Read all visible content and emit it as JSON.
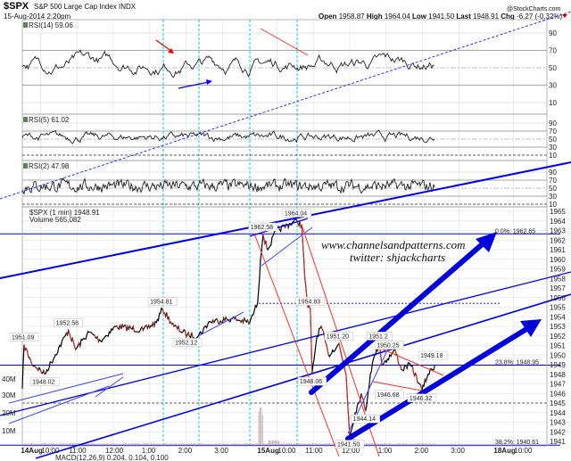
{
  "header": {
    "symbol": "$SPX",
    "name": "S&P 500 Large Cap Index INDX",
    "source": "@StockCharts.com",
    "datetime": "15-Aug-2014 2:20pm",
    "open_label": "Open",
    "open": "1958.87",
    "high_label": "High",
    "high": "1964.04",
    "low_label": "Low",
    "low": "1941.50",
    "last_label": "Last",
    "last": "1948.91",
    "chg_label": "Chg",
    "chg": "-6.27 (-0.32%)",
    "chg_icon": "triangle-down-icon",
    "chg_color": "#cc0000"
  },
  "watermark": {
    "line1": "www.channelsandpatterns.com",
    "line2": "twitter: shjackcharts"
  },
  "chart_data": [
    {
      "type": "line",
      "title": "RSI(14) 59.06",
      "ylim": [
        0,
        100
      ],
      "ticks": [
        "90",
        "70",
        "50",
        "30",
        "10"
      ]
    },
    {
      "type": "line",
      "title": "RSI(5) 61.02",
      "ylim": [
        0,
        100
      ],
      "ticks": [
        "90",
        "70",
        "50",
        "30",
        "10"
      ]
    },
    {
      "type": "line",
      "title": "RSI(2) 47.98",
      "ylim": [
        0,
        100
      ],
      "ticks": [
        "90",
        "70",
        "50",
        "30",
        "10"
      ]
    },
    {
      "type": "line",
      "title": "$SPX (1 min) 1948.91",
      "volume_label": "Volume 565,082",
      "ylim": [
        1941,
        1965
      ],
      "price_ticks": [
        "1965",
        "1964",
        "1963",
        "1962",
        "1961",
        "1960",
        "1959",
        "1958",
        "1957",
        "1956",
        "1955",
        "1954",
        "1953",
        "1952",
        "1951",
        "1950",
        "1949",
        "1948",
        "1947",
        "1946",
        "1945",
        "1944",
        "1943",
        "1942",
        "1941"
      ],
      "volume_ticks": [
        "40M",
        "30M",
        "20M",
        "10M"
      ],
      "x_ticks": [
        {
          "t": "14Aug 10:00",
          "label": "10:00",
          "day": "14Aug"
        },
        {
          "t": "14Aug 11:00",
          "label": "11:00"
        },
        {
          "t": "14Aug 12:00",
          "label": "12:00"
        },
        {
          "t": "14Aug 13:00",
          "label": "1:00"
        },
        {
          "t": "14Aug 14:00",
          "label": "2:00"
        },
        {
          "t": "14Aug 15:00",
          "label": "3:00"
        },
        {
          "t": "15Aug 10:00",
          "label": "10:00",
          "day": "15Aug"
        },
        {
          "t": "15Aug 11:00",
          "label": "11:00"
        },
        {
          "t": "15Aug 12:00",
          "label": "12:00"
        },
        {
          "t": "15Aug 13:00",
          "label": "1:00"
        },
        {
          "t": "15Aug 14:00",
          "label": "2:00"
        },
        {
          "t": "15Aug 15:00",
          "label": "3:00"
        },
        {
          "t": "18Aug 10:00",
          "label": "10:00",
          "day": "18Aug"
        }
      ],
      "price": [
        [
          "14Aug 09:30",
          1946.5
        ],
        [
          "14Aug 09:33",
          1951.09
        ],
        [
          "14Aug 09:45",
          1949.2
        ],
        [
          "14Aug 10:07",
          1948.02
        ],
        [
          "14Aug 10:46",
          1952.58
        ],
        [
          "14Aug 10:58",
          1950.6
        ],
        [
          "14Aug 11:20",
          1952.4
        ],
        [
          "14Aug 11:39",
          1951.5
        ],
        [
          "14Aug 12:04",
          1953.0
        ],
        [
          "14Aug 12:49",
          1952.6
        ],
        [
          "14Aug 13:11",
          1953.4
        ],
        [
          "14Aug 13:21",
          1954.81
        ],
        [
          "14Aug 13:40",
          1953.0
        ],
        [
          "14Aug 14:02",
          1952.12
        ],
        [
          "14Aug 14:20",
          1952.0
        ],
        [
          "14Aug 14:39",
          1953.5
        ],
        [
          "14Aug 15:16",
          1953.8
        ],
        [
          "14Aug 15:45",
          1953.4
        ],
        [
          "14Aug 15:58",
          1955.5
        ],
        [
          "15Aug 09:33",
          1960.0
        ],
        [
          "15Aug 09:37",
          1962.58
        ],
        [
          "15Aug 09:45",
          1961.0
        ],
        [
          "15Aug 09:59",
          1963.0
        ],
        [
          "15Aug 10:33",
          1964.04
        ],
        [
          "15Aug 10:41",
          1963.5
        ],
        [
          "15Aug 10:46",
          1958.0
        ],
        [
          "15Aug 10:51",
          1955.0
        ],
        [
          "15Aug 10:55",
          1954.83
        ],
        [
          "15Aug 10:58",
          1948.06
        ],
        [
          "15Aug 11:06",
          1952.0
        ],
        [
          "15Aug 11:13",
          1953.0
        ],
        [
          "15Aug 11:25",
          1950.0
        ],
        [
          "15Aug 11:42",
          1951.2
        ],
        [
          "15Aug 11:50",
          1949.0
        ],
        [
          "15Aug 11:54",
          1948.0
        ],
        [
          "15Aug 12:00",
          1941.5
        ],
        [
          "15Aug 12:09",
          1944.0
        ],
        [
          "15Aug 12:19",
          1946.0
        ],
        [
          "15Aug 12:26",
          1944.14
        ],
        [
          "15Aug 12:34",
          1948.0
        ],
        [
          "15Aug 12:41",
          1950.0
        ],
        [
          "15Aug 12:49",
          1951.2
        ],
        [
          "15Aug 12:53",
          1949.0
        ],
        [
          "15Aug 13:15",
          1950.5
        ],
        [
          "15Aug 13:25",
          1948.5
        ],
        [
          "15Aug 13:40",
          1949.0
        ],
        [
          "15Aug 13:55",
          1947.0
        ],
        [
          "15Aug 13:59",
          1946.32
        ],
        [
          "15Aug 14:09",
          1948.0
        ],
        [
          "15Aug 14:20",
          1948.91
        ]
      ],
      "annotations": [
        {
          "label": "1951.09",
          "t": "14Aug 09:33",
          "price": 1951.09,
          "pos": "above"
        },
        {
          "label": "1948.02",
          "t": "14Aug 10:07",
          "price": 1948.02,
          "pos": "below"
        },
        {
          "label": "1952.58",
          "t": "14Aug 10:46",
          "price": 1952.58,
          "pos": "above"
        },
        {
          "label": "1954.81",
          "t": "14Aug 13:21",
          "price": 1954.81,
          "pos": "above"
        },
        {
          "label": "1952.12",
          "t": "14Aug 14:02",
          "price": 1952.12,
          "pos": "below"
        },
        {
          "label": "1962.58",
          "t": "15Aug 09:37",
          "price": 1962.58,
          "pos": "above"
        },
        {
          "label": "1964.04",
          "t": "15Aug 10:33",
          "price": 1964.04,
          "pos": "above"
        },
        {
          "label": "1954.83",
          "t": "15Aug 10:55",
          "price": 1954.83,
          "pos": "above"
        },
        {
          "label": "1948.06",
          "t": "15Aug 10:58",
          "price": 1948.06,
          "pos": "below"
        },
        {
          "label": "1951.20",
          "t": "15Aug 11:42",
          "price": 1951.2,
          "pos": "above"
        },
        {
          "label": "1941.50",
          "t": "15Aug 12:00",
          "price": 1941.5,
          "pos": "below"
        },
        {
          "label": "1944.14",
          "t": "15Aug 12:26",
          "price": 1944.14,
          "pos": "below"
        },
        {
          "label": "1951.2",
          "t": "15Aug 12:49",
          "price": 1951.2,
          "pos": "above"
        },
        {
          "label": "1950.25",
          "t": "15Aug 13:05",
          "price": 1950.25,
          "pos": "above"
        },
        {
          "label": "1946.68",
          "t": "15Aug 13:05",
          "price": 1946.68,
          "pos": "below"
        },
        {
          "label": "1946.32",
          "t": "15Aug 13:59",
          "price": 1946.32,
          "pos": "below"
        },
        {
          "label": "1949.18",
          "t": "15Aug 14:17",
          "price": 1949.18,
          "pos": "above"
        }
      ],
      "fib_levels": [
        {
          "label": "0.0%: 1962.65",
          "price": 1962.65
        },
        {
          "label": "23.8%: 1948.95",
          "price": 1948.95
        },
        {
          "label": "38.2%: 1940.61",
          "price": 1940.61
        }
      ],
      "line_color": "#000000",
      "trendline_color": "#0000ee",
      "downtrend_color": "#ee3333",
      "marker_line_color": "#00cccc"
    }
  ],
  "macd": {
    "label": "MACD(12,26,9) 0.204, 0.104, 0.100"
  }
}
